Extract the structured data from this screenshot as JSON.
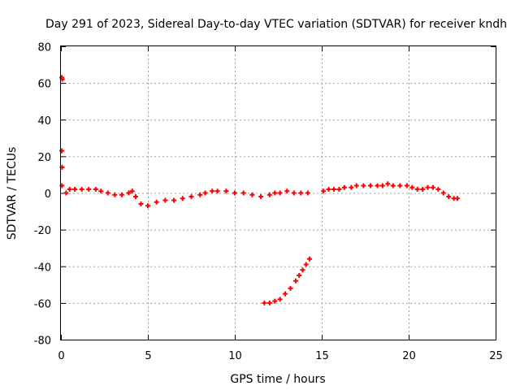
{
  "chart_data": {
    "type": "scatter",
    "title": "Day 291 of 2023, Sidereal Day-to-day VTEC variation (SDTVAR) for receiver kndh",
    "xlabel": "GPS time / hours",
    "ylabel": "SDTVAR / TECUs",
    "xlim": [
      0,
      25
    ],
    "ylim": [
      -80,
      80
    ],
    "x_ticks": [
      0,
      5,
      10,
      15,
      20,
      25
    ],
    "y_ticks": [
      -80,
      -60,
      -40,
      -20,
      0,
      20,
      40,
      60,
      80
    ],
    "x_tick_labels": [
      "0",
      "5",
      "10",
      "15",
      "20",
      "25"
    ],
    "y_tick_labels": [
      "-80",
      "-60",
      "-40",
      "-20",
      "0",
      "20",
      "40",
      "60",
      "80"
    ],
    "grid": true,
    "legend": "none",
    "marker": "+",
    "color": "#ff0000",
    "series": [
      {
        "name": "SDTVAR",
        "x": [
          0.05,
          0.08,
          0.05,
          0.07,
          0.06,
          0.3,
          0.5,
          0.8,
          1.2,
          1.6,
          2.0,
          2.3,
          2.7,
          3.1,
          3.5,
          3.9,
          4.1,
          4.3,
          4.6,
          5.0,
          5.5,
          6.0,
          6.5,
          7.0,
          7.5,
          8.0,
          8.3,
          8.7,
          9.0,
          9.5,
          10.0,
          10.5,
          11.0,
          11.5,
          12.0,
          12.3,
          12.6,
          13.0,
          13.4,
          13.8,
          14.2,
          15.1,
          15.4,
          15.7,
          16.0,
          16.3,
          16.7,
          17.0,
          17.4,
          17.8,
          18.2,
          18.5,
          18.8,
          19.1,
          19.5,
          19.9,
          20.2,
          20.5,
          20.8,
          21.1,
          21.4,
          21.7,
          22.0,
          22.3,
          22.6,
          22.8,
          11.7,
          12.0,
          12.3,
          12.6,
          12.9,
          13.2,
          13.5,
          13.7,
          13.9,
          14.1,
          14.3
        ],
        "y": [
          63,
          62,
          23,
          14,
          4,
          0,
          2,
          2,
          2,
          2,
          2,
          1,
          0,
          -1,
          -1,
          0,
          1,
          -2,
          -6,
          -7,
          -5,
          -4,
          -4,
          -3,
          -2,
          -1,
          0,
          1,
          1,
          1,
          0,
          0,
          -1,
          -2,
          -1,
          0,
          0,
          1,
          0,
          0,
          0,
          1,
          2,
          2,
          2,
          3,
          3,
          4,
          4,
          4,
          4,
          4,
          5,
          4,
          4,
          4,
          3,
          2,
          2,
          3,
          3,
          2,
          0,
          -2,
          -3,
          -3,
          -60,
          -60,
          -59,
          -58,
          -55,
          -52,
          -48,
          -45,
          -42,
          -39,
          -36
        ]
      }
    ]
  }
}
